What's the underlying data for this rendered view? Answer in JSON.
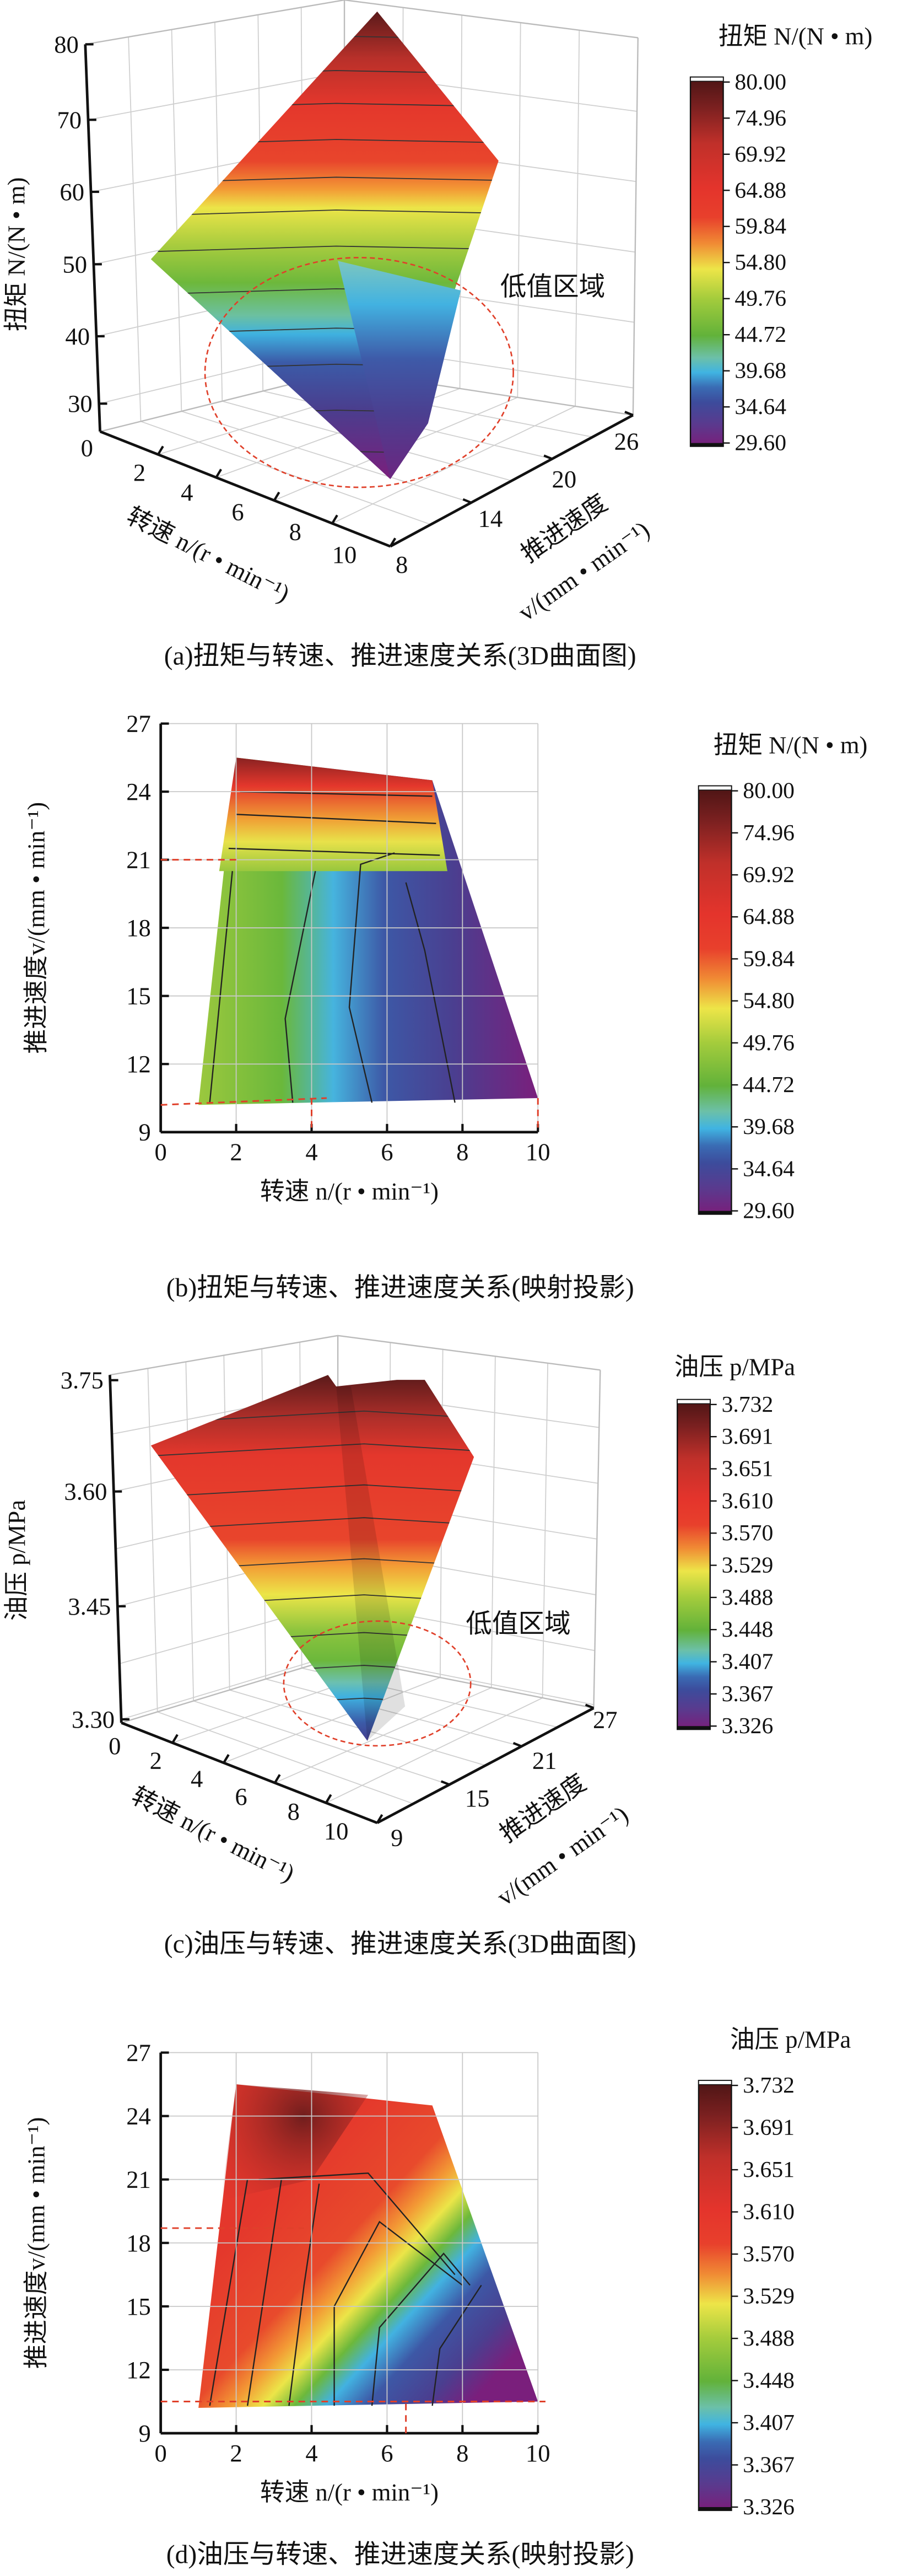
{
  "panels": [
    {
      "id": "a",
      "caption": "(a)扭矩与转速、推进速度关系(3D曲面图)",
      "z_title": "扭矩 N/(N • m)",
      "x_title": "转速 n/(r • min⁻¹)",
      "y_title_line1": "推进速度",
      "y_title_line2": "v/(mm • min⁻¹)",
      "annotation": "低值区域",
      "colorbar_title": "扭矩 N/(N • m)",
      "colorbar_labels": [
        "80.00",
        "74.96",
        "69.92",
        "64.88",
        "59.84",
        "54.80",
        "49.76",
        "44.72",
        "39.68",
        "34.64",
        "29.60"
      ],
      "z_ticks": [
        "30",
        "40",
        "50",
        "60",
        "70",
        "80"
      ],
      "x_ticks": [
        "0",
        "2",
        "4",
        "6",
        "8",
        "10"
      ],
      "y_ticks": [
        "8",
        "14",
        "20",
        "26"
      ]
    },
    {
      "id": "b",
      "caption": "(b)扭矩与转速、推进速度关系(映射投影)",
      "x_title": "转速 n/(r • min⁻¹)",
      "y_title": "推进速度v/(mm • min⁻¹)",
      "colorbar_title": "扭矩 N/(N • m)",
      "colorbar_labels": [
        "80.00",
        "74.96",
        "69.92",
        "64.88",
        "59.84",
        "54.80",
        "49.76",
        "44.72",
        "39.68",
        "34.64",
        "29.60"
      ],
      "x_ticks": [
        "0",
        "2",
        "4",
        "6",
        "8",
        "10"
      ],
      "y_ticks": [
        "9",
        "12",
        "15",
        "18",
        "21",
        "24",
        "27"
      ]
    },
    {
      "id": "c",
      "caption": "(c)油压与转速、推进速度关系(3D曲面图)",
      "z_title": "油压 p/MPa",
      "x_title": "转速 n/(r • min⁻¹)",
      "y_title_line1": "推进速度",
      "y_title_line2": "v/(mm • min⁻¹)",
      "annotation": "低值区域",
      "colorbar_title": "油压 p/MPa",
      "colorbar_labels": [
        "3.732",
        "3.691",
        "3.651",
        "3.610",
        "3.570",
        "3.529",
        "3.488",
        "3.448",
        "3.407",
        "3.367",
        "3.326"
      ],
      "z_ticks": [
        "3.30",
        "3.45",
        "3.60",
        "3.75"
      ],
      "x_ticks": [
        "0",
        "2",
        "4",
        "6",
        "8",
        "10"
      ],
      "y_ticks": [
        "9",
        "15",
        "21",
        "27"
      ]
    },
    {
      "id": "d",
      "caption": "(d)油压与转速、推进速度关系(映射投影)",
      "x_title": "转速 n/(r • min⁻¹)",
      "y_title": "推进速度v/(mm • min⁻¹)",
      "colorbar_title": "油压 p/MPa",
      "colorbar_labels": [
        "3.732",
        "3.691",
        "3.651",
        "3.610",
        "3.570",
        "3.529",
        "3.488",
        "3.448",
        "3.407",
        "3.367",
        "3.326"
      ],
      "x_ticks": [
        "0",
        "2",
        "4",
        "6",
        "8",
        "10"
      ],
      "y_ticks": [
        "9",
        "12",
        "15",
        "18",
        "21",
        "24",
        "27"
      ]
    }
  ],
  "colors": {
    "dashed_annotation": "#e0402a",
    "scale_top": "#4a1414",
    "scale_red": "#e4342c",
    "scale_yellow": "#ede548",
    "scale_green": "#62b23a",
    "scale_cyan": "#40b4e2",
    "scale_blue": "#3c4c9c",
    "scale_bottom": "#7a1e7a"
  },
  "chart_data": [
    {
      "type": "heatmap",
      "subtype": "3d-surface",
      "title": "(a)扭矩与转速、推进速度关系(3D曲面图)",
      "xlabel": "转速 n/(r • min⁻¹)",
      "ylabel": "推进速度 v/(mm • min⁻¹)",
      "zlabel": "扭矩 N/(N • m)",
      "xlim": [
        0,
        10
      ],
      "ylim": [
        8,
        26
      ],
      "zlim": [
        29.6,
        80
      ],
      "colorbar_levels": [
        80.0,
        74.96,
        69.92,
        64.88,
        59.84,
        54.8,
        49.76,
        44.72,
        39.68,
        34.64,
        29.6
      ],
      "points": [
        {
          "n": 1,
          "v": 25,
          "N": 50
        },
        {
          "n": 2,
          "v": 25.5,
          "N": 80
        },
        {
          "n": 7.5,
          "v": 24.5,
          "N": 63
        },
        {
          "n": 10,
          "v": 10,
          "N": 30
        },
        {
          "n": 1,
          "v": 10,
          "N": 45
        },
        {
          "n": 6,
          "v": 14,
          "N": 33
        }
      ],
      "annotation": "低值区域"
    },
    {
      "type": "heatmap",
      "subtype": "contour-projection",
      "title": "(b)扭矩与转速、推进速度关系(映射投影)",
      "xlabel": "转速 n/(r • min⁻¹)",
      "ylabel": "推进速度v/(mm • min⁻¹)",
      "xlim": [
        0,
        10
      ],
      "ylim": [
        9,
        27
      ],
      "colorbar_levels": [
        80.0,
        74.96,
        69.92,
        64.88,
        59.84,
        54.8,
        49.76,
        44.72,
        39.68,
        34.64,
        29.6
      ],
      "domain_polygon": [
        [
          1,
          10.2
        ],
        [
          2,
          25.5
        ],
        [
          7.2,
          24.5
        ],
        [
          10,
          10.5
        ]
      ],
      "reference_lines": {
        "v": [
          21,
          10.2
        ],
        "n": [
          4,
          10
        ]
      }
    },
    {
      "type": "heatmap",
      "subtype": "3d-surface",
      "title": "(c)油压与转速、推进速度关系(3D曲面图)",
      "xlabel": "转速 n/(r • min⁻¹)",
      "ylabel": "推进速度 v/(mm • min⁻¹)",
      "zlabel": "油压 p/MPa",
      "xlim": [
        0,
        10
      ],
      "ylim": [
        9,
        27
      ],
      "zlim": [
        3.3,
        3.75
      ],
      "colorbar_levels": [
        3.732,
        3.691,
        3.651,
        3.61,
        3.57,
        3.529,
        3.488,
        3.448,
        3.407,
        3.367,
        3.326
      ],
      "annotation": "低值区域"
    },
    {
      "type": "heatmap",
      "subtype": "contour-projection",
      "title": "(d)油压与转速、推进速度关系(映射投影)",
      "xlabel": "转速 n/(r • min⁻¹)",
      "ylabel": "推进速度v/(mm • min⁻¹)",
      "xlim": [
        0,
        10
      ],
      "ylim": [
        9,
        27
      ],
      "colorbar_levels": [
        3.732,
        3.691,
        3.651,
        3.61,
        3.57,
        3.529,
        3.488,
        3.448,
        3.407,
        3.367,
        3.326
      ],
      "domain_polygon": [
        [
          1,
          10.2
        ],
        [
          2,
          25.5
        ],
        [
          7.2,
          24.5
        ],
        [
          10,
          10.5
        ]
      ],
      "reference_lines": {
        "v": [
          18.7,
          10.5
        ],
        "n": [
          6.5
        ]
      }
    }
  ]
}
